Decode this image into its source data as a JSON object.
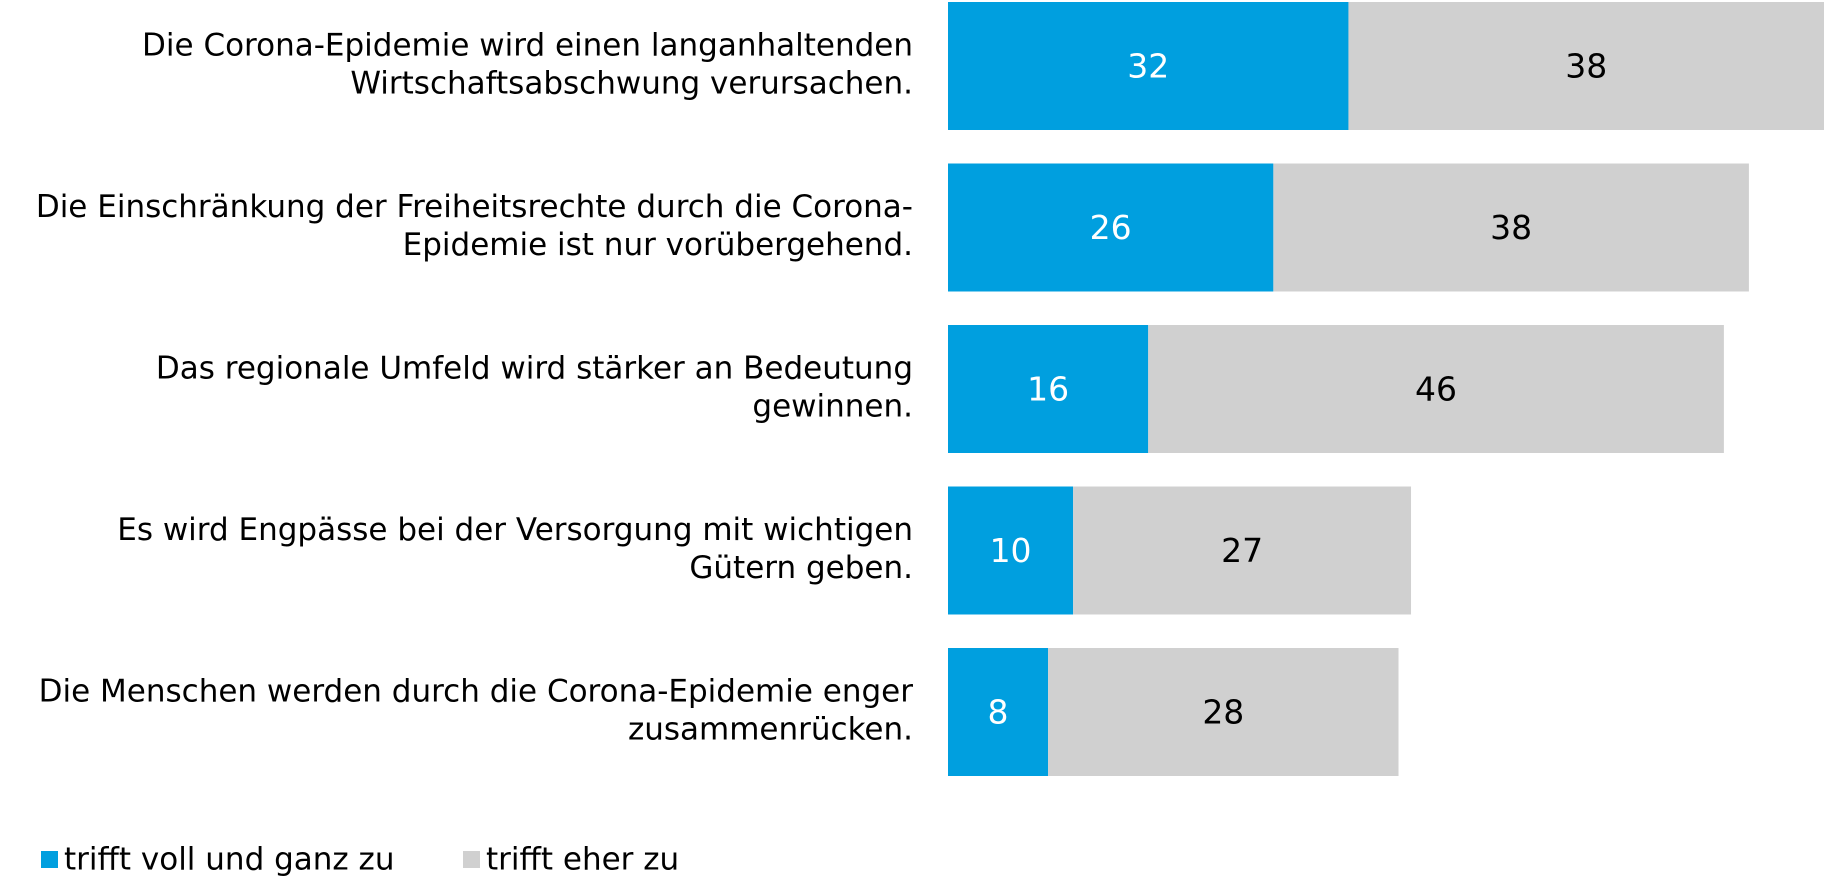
{
  "chart_data": {
    "type": "stacked-bar-horizontal",
    "categories": [
      [
        "Die Corona-Epidemie wird einen langanhaltenden",
        "Wirtschaftsabschwung verursachen."
      ],
      [
        "Die Einschränkung der Freiheitsrechte durch die Corona-",
        "Epidemie ist nur vorübergehend."
      ],
      [
        "Das regionale Umfeld wird stärker an Bedeutung",
        "gewinnen."
      ],
      [
        "Es wird Engpässe bei der Versorgung mit wichtigen",
        "Gütern geben."
      ],
      [
        "Die Menschen werden durch die Corona-Epidemie enger",
        "zusammenrücken."
      ]
    ],
    "series": [
      {
        "name": "trifft voll und ganz zu",
        "color": "#009fdf",
        "label_color": "#ffffff",
        "values": [
          32,
          26,
          16,
          10,
          8
        ]
      },
      {
        "name": "trifft eher zu",
        "color": "#d0d0d0",
        "label_color": "#000000",
        "values": [
          38,
          38,
          46,
          27,
          28
        ]
      }
    ],
    "legend": "bottom-left"
  }
}
